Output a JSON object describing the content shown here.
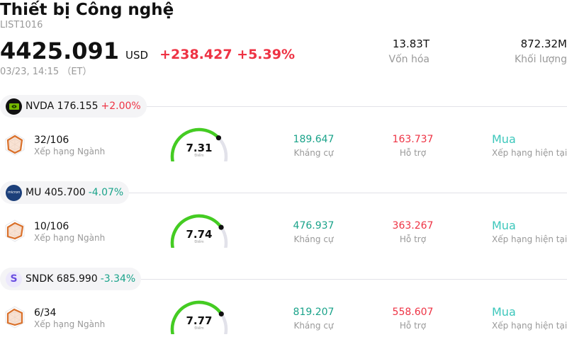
{
  "header": {
    "title": "Thiết bị Công nghệ",
    "code": "LIST1016",
    "price": "4425.091",
    "currency": "USD",
    "change": "+238.427 +5.39%",
    "change_color": "#ee3344",
    "time": "03/23, 14:15 （ET）",
    "stats": [
      {
        "value": "13.83T",
        "label": "Vốn hóa"
      },
      {
        "value": "872.32M",
        "label": "Khối lượng"
      }
    ]
  },
  "labels": {
    "rank": "Xếp hạng Ngành",
    "score": "Điểm",
    "resistance": "Kháng cự",
    "support": "Hỗ trợ",
    "rating": "Xếp hạng hiện tại"
  },
  "colors": {
    "up": "#ee3344",
    "down": "#1aa38a",
    "resistance": "#1aa38a",
    "support": "#ee3344",
    "rating": "#3cc7bb",
    "gauge_fill": "#44cc22",
    "gauge_track": "#e2e2ea"
  },
  "stocks": [
    {
      "ticker": "NVDA",
      "price": "176.155",
      "change": "+2.00%",
      "direction": "up",
      "logo": "nvidia-logo",
      "rank": "32/106",
      "score": "7.31",
      "score_value": 7.31,
      "resistance": "189.647",
      "support": "163.737",
      "rating": "Mua"
    },
    {
      "ticker": "MU",
      "price": "405.700",
      "change": "-4.07%",
      "direction": "down",
      "logo": "micron-logo",
      "rank": "10/106",
      "score": "7.74",
      "score_value": 7.74,
      "resistance": "476.937",
      "support": "363.267",
      "rating": "Mua"
    },
    {
      "ticker": "SNDK",
      "price": "685.990",
      "change": "-3.34%",
      "direction": "down",
      "logo": "sandisk-logo",
      "logo_text": "S",
      "rank": "6/34",
      "score": "7.77",
      "score_value": 7.77,
      "resistance": "819.207",
      "support": "558.607",
      "rating": "Mua"
    }
  ]
}
